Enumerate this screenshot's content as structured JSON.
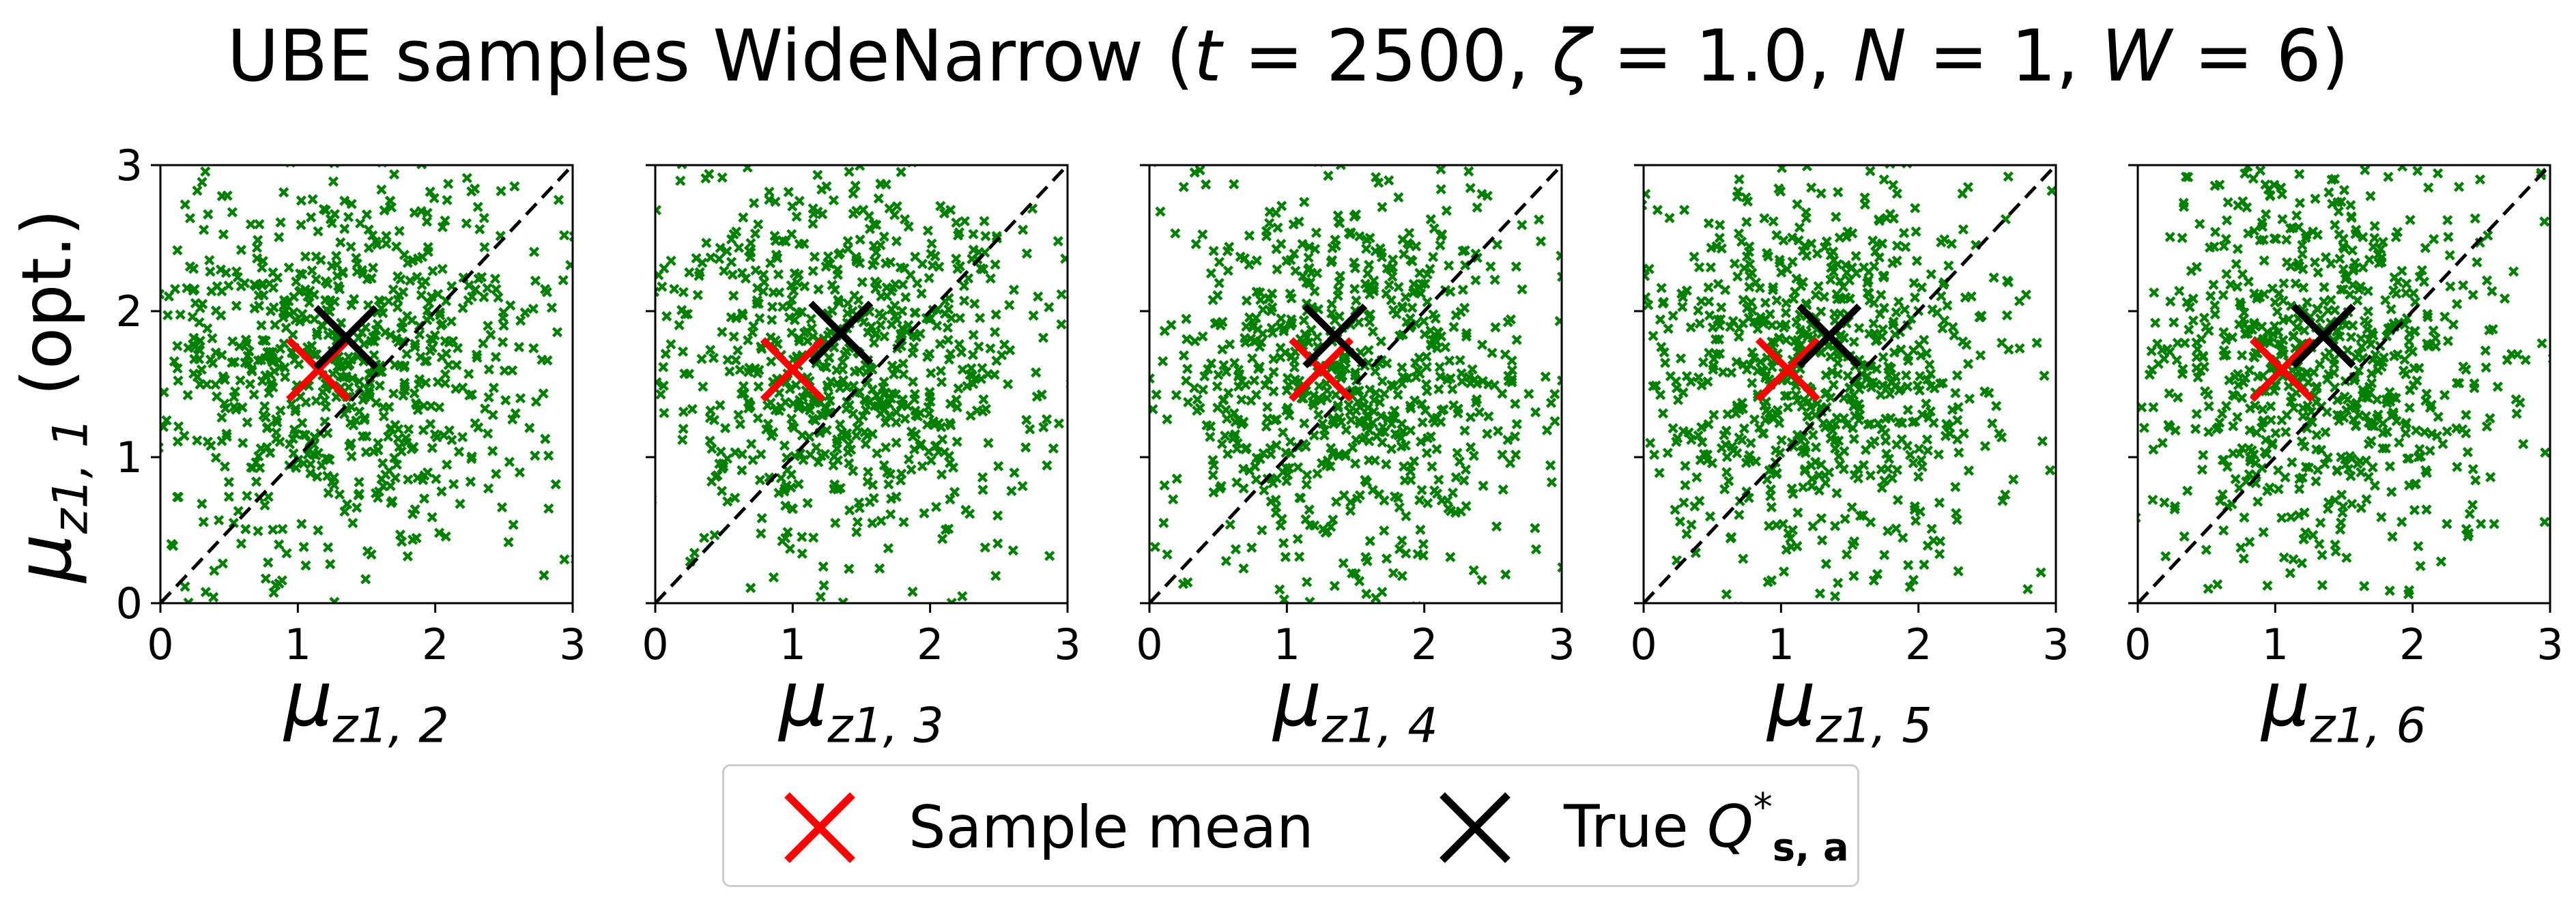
{
  "chart_title": {
    "prefix": "UBE samples WideNarrow (",
    "t_sym": "t",
    "t_val": " = 2500, ",
    "zeta_sym": "ζ",
    "zeta_val": " = 1.0, ",
    "n_sym": "N",
    "n_val": " = 1, ",
    "w_sym": "W",
    "w_val": " = 6)"
  },
  "ylabel": {
    "mu": "μ",
    "sub": "z1, 1",
    "suffix": " (opt.)"
  },
  "legend": {
    "sample_mean": "Sample mean",
    "true_prefix": "True ",
    "true_q": "Q",
    "true_sup": "*",
    "true_sub": "s, a"
  },
  "chart_data": {
    "type": "scatter",
    "panels": [
      {
        "xlabel_mu": "μ",
        "xlabel_sub": "z1, 2",
        "sample_mean": [
          1.15,
          1.6
        ],
        "true_q": [
          1.35,
          1.82
        ],
        "cx": 1.3,
        "cy": 1.7,
        "sx": 0.75,
        "sy": 0.7,
        "seed": 11
      },
      {
        "xlabel_mu": "μ",
        "xlabel_sub": "z1, 3",
        "sample_mean": [
          1.0,
          1.6
        ],
        "true_q": [
          1.35,
          1.85
        ],
        "cx": 1.35,
        "cy": 1.65,
        "sx": 0.72,
        "sy": 0.72,
        "seed": 23
      },
      {
        "xlabel_mu": "μ",
        "xlabel_sub": "z1, 4",
        "sample_mean": [
          1.25,
          1.6
        ],
        "true_q": [
          1.35,
          1.83
        ],
        "cx": 1.4,
        "cy": 1.6,
        "sx": 0.7,
        "sy": 0.75,
        "seed": 37
      },
      {
        "xlabel_mu": "μ",
        "xlabel_sub": "z1, 5",
        "sample_mean": [
          1.05,
          1.6
        ],
        "true_q": [
          1.35,
          1.83
        ],
        "cx": 1.3,
        "cy": 1.6,
        "sx": 0.68,
        "sy": 0.75,
        "seed": 41
      },
      {
        "xlabel_mu": "μ",
        "xlabel_sub": "z1, 6",
        "sample_mean": [
          1.05,
          1.6
        ],
        "true_q": [
          1.35,
          1.83
        ],
        "cx": 1.3,
        "cy": 1.65,
        "sx": 0.72,
        "sy": 0.72,
        "seed": 53
      }
    ],
    "n_points_per_panel": 800,
    "xlim": [
      0,
      3
    ],
    "ylim": [
      0,
      3
    ],
    "xticks": [
      0,
      1,
      2,
      3
    ],
    "yticks": [
      0,
      1,
      2,
      3
    ],
    "diagonal": "y = x dashed",
    "colors": {
      "samples": "#008000",
      "sample_mean": "#ff0000",
      "true_q": "#000000",
      "diagonal": "#000000"
    }
  }
}
